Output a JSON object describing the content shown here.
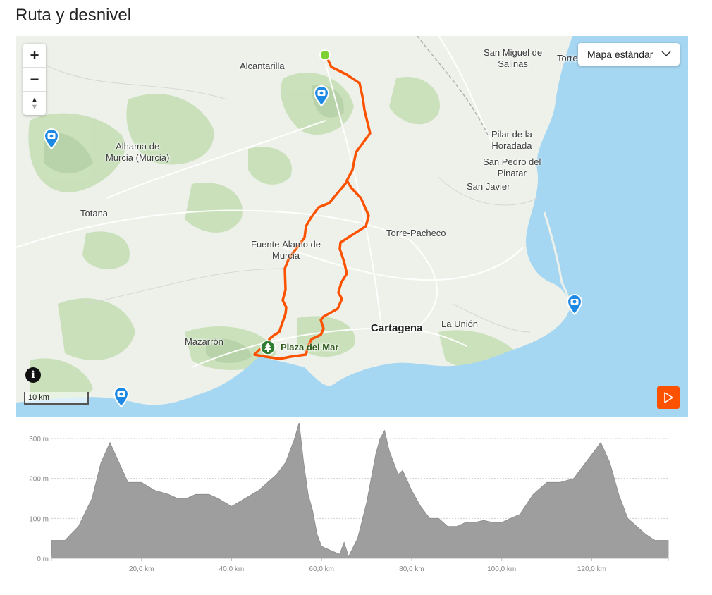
{
  "section": {
    "title": "Ruta y desnivel"
  },
  "map": {
    "type_selector": {
      "label": "Mapa estándar"
    },
    "zoom_in_label": "+",
    "zoom_out_label": "−",
    "compass_label": "▲",
    "info_label": "i",
    "scale_label": "10 km",
    "places": {
      "alcantarilla": "Alcantarilla",
      "san_miguel_1": "San Miguel de",
      "san_miguel_2": "Salinas",
      "torre": "Torre",
      "alhama_1": "Alhama de",
      "alhama_2": "Murcia (Murcia)",
      "pilar_1": "Pilar de la",
      "pilar_2": "Horadada",
      "san_pedro_1": "San Pedro del",
      "san_pedro_2": "Pinatar",
      "san_javier": "San Javier",
      "totana": "Totana",
      "torre_pacheco": "Torre-Pacheco",
      "fuente_1": "Fuente Álamo de",
      "fuente_2": "Murcia",
      "cartagena": "Cartagena",
      "la_union": "La Unión",
      "mazarron": "Mazarrón"
    },
    "poi_label": "Plaza del Mar",
    "icons": [
      "camera-marker-icon",
      "tree-poi-icon",
      "zoom-in-icon",
      "zoom-out-icon",
      "compass-icon",
      "info-icon",
      "play-icon",
      "chevron-down-icon"
    ],
    "colors": {
      "route": "#fc5200",
      "start": "#7dd136",
      "sea": "#a6d7f2",
      "camera_marker": "#1e88e5"
    }
  },
  "elevation": {
    "y_ticks": [
      "300 m",
      "200 m",
      "100 m",
      "0 m"
    ],
    "x_ticks": [
      "20,0 km",
      "40,0 km",
      "60,0 km",
      "80,0 km",
      "100,0 km",
      "120,0 km"
    ],
    "fill_color": "#9e9e9e"
  },
  "chart_data": {
    "type": "area",
    "xlabel": "",
    "ylabel": "",
    "x_unit": "km",
    "y_unit": "m",
    "xlim": [
      0,
      137
    ],
    "ylim": [
      0,
      330
    ],
    "grid": true,
    "x": [
      0,
      3,
      6,
      9,
      11,
      13,
      15,
      17,
      20,
      23,
      26,
      28,
      30,
      32,
      35,
      37,
      40,
      43,
      46,
      48,
      50,
      52,
      54,
      55,
      56,
      57,
      58,
      59,
      60,
      62,
      64,
      65,
      66,
      68,
      70,
      72,
      73,
      74,
      75,
      76,
      77,
      78,
      80,
      82,
      84,
      86,
      88,
      90,
      92,
      94,
      96,
      98,
      100,
      102,
      104,
      107,
      110,
      113,
      116,
      118,
      120,
      122,
      124,
      125,
      126,
      127,
      128,
      130,
      132,
      134,
      137
    ],
    "y": [
      45,
      45,
      80,
      150,
      240,
      290,
      240,
      190,
      190,
      170,
      160,
      150,
      150,
      160,
      160,
      150,
      130,
      150,
      170,
      190,
      210,
      240,
      300,
      340,
      240,
      160,
      120,
      60,
      30,
      20,
      10,
      40,
      5,
      50,
      140,
      260,
      300,
      320,
      270,
      240,
      210,
      220,
      170,
      130,
      100,
      100,
      80,
      80,
      90,
      90,
      95,
      90,
      90,
      100,
      110,
      160,
      190,
      190,
      200,
      230,
      260,
      290,
      240,
      200,
      160,
      130,
      100,
      80,
      60,
      45,
      45
    ]
  }
}
